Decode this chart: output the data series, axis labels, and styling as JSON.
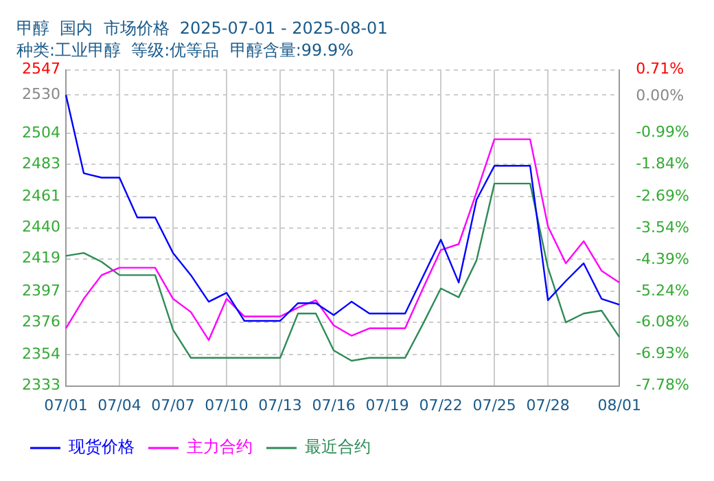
{
  "chart_data": {
    "type": "line",
    "title": "甲醇  国内  市场价格  2025-07-01 - 2025-08-01",
    "subtitle": "种类:工业甲醇  等级:优等品  甲醇含量:99.9%",
    "categories": [
      "07/01",
      null,
      null,
      "07/04",
      null,
      null,
      "07/07",
      null,
      null,
      "07/10",
      null,
      null,
      "07/13",
      null,
      null,
      "07/16",
      null,
      null,
      "07/19",
      null,
      null,
      "07/22",
      null,
      null,
      "07/25",
      null,
      null,
      "07/28",
      null,
      null,
      null,
      "08/01"
    ],
    "series": [
      {
        "name": "现货价格",
        "color": "#0000ff",
        "values": [
          2530,
          2477,
          2474,
          2474,
          2447,
          2447,
          2423,
          2408,
          2390,
          2396,
          2377,
          2377,
          2377,
          2389,
          2389,
          2381,
          2390,
          2382,
          2382,
          2382,
          2407,
          2432,
          2403,
          2459,
          2482,
          2482,
          2482,
          2391,
          2404,
          2416,
          2392,
          2388
        ]
      },
      {
        "name": "主力合约",
        "color": "#ff00ff",
        "values": [
          2372,
          2392,
          2408,
          2413,
          2413,
          2413,
          2392,
          2383,
          2364,
          2392,
          2380,
          2380,
          2380,
          2386,
          2391,
          2374,
          2367,
          2372,
          2372,
          2372,
          2399,
          2425,
          2429,
          2464,
          2500,
          2500,
          2500,
          2441,
          2416,
          2431,
          2411,
          2403
        ]
      },
      {
        "name": "最近合约",
        "color": "#2e8b57",
        "values": [
          2421,
          2423,
          2417,
          2408,
          2408,
          2408,
          2371,
          2352,
          2352,
          2352,
          2352,
          2352,
          2352,
          2382,
          2382,
          2357,
          2350,
          2352,
          2352,
          2352,
          2375,
          2399,
          2393,
          2418,
          2470,
          2470,
          2470,
          2413,
          2376,
          2382,
          2384,
          2366
        ]
      }
    ],
    "ylim": [
      2333,
      2547
    ],
    "yticks": [
      2333,
      2354,
      2376,
      2397,
      2419,
      2440,
      2461,
      2483,
      2504,
      2530,
      2547
    ],
    "y2lim": [
      -7.78,
      0.71
    ],
    "y2ticks": [
      {
        "value": -7.78,
        "label": "-7.78%"
      },
      {
        "value": -6.93,
        "label": "-6.93%"
      },
      {
        "value": -6.08,
        "label": "-6.08%"
      },
      {
        "value": -5.24,
        "label": "-5.24%"
      },
      {
        "value": -4.39,
        "label": "-4.39%"
      },
      {
        "value": -3.54,
        "label": "-3.54%"
      },
      {
        "value": -2.69,
        "label": "-2.69%"
      },
      {
        "value": -1.84,
        "label": "-1.84%"
      },
      {
        "value": -0.99,
        "label": "-0.99%"
      },
      {
        "value": 0,
        "label": "0.00%"
      },
      {
        "value": 0.71,
        "label": "0.71%"
      }
    ],
    "grid": true,
    "legend": "bottom left",
    "marker": "none",
    "line_style": "solid"
  }
}
